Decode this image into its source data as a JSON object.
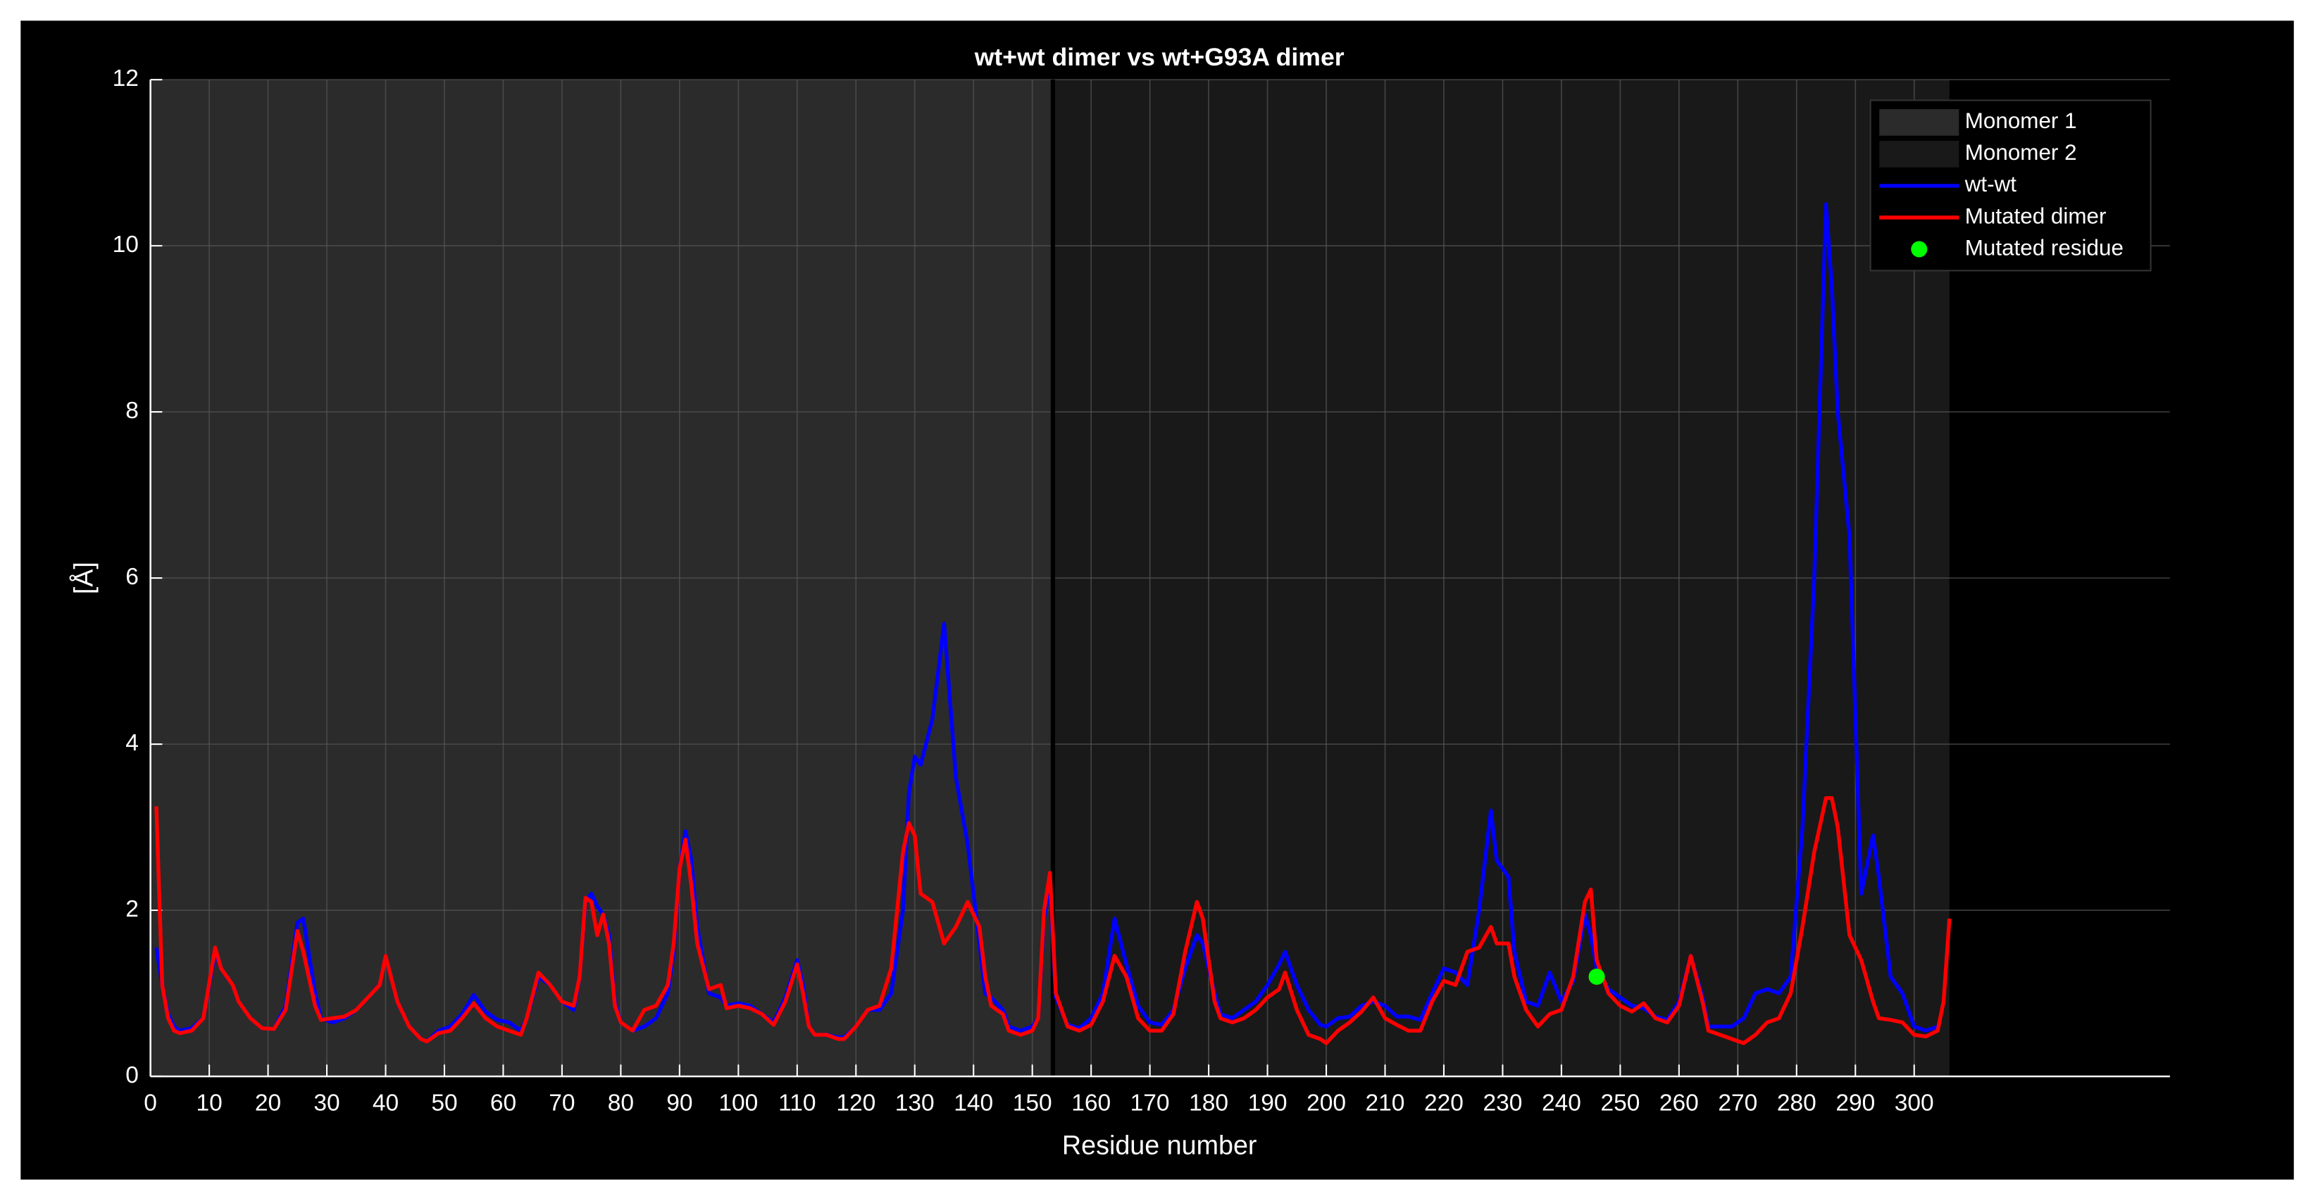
{
  "chart_data": {
    "type": "line",
    "title": "wt+wt dimer vs wt+G93A dimer",
    "x_label": "Residue number",
    "y_label": "[Å]",
    "xlim": [
      0,
      343.5
    ],
    "ylim": [
      0,
      12
    ],
    "xticks": [
      0,
      10,
      20,
      30,
      40,
      50,
      60,
      70,
      80,
      90,
      100,
      110,
      120,
      130,
      140,
      150,
      160,
      170,
      180,
      190,
      200,
      210,
      220,
      230,
      240,
      250,
      260,
      270,
      280,
      290,
      300
    ],
    "yticks": [
      0,
      2,
      4,
      6,
      8,
      10,
      12
    ],
    "grid": true,
    "legend": "upper right",
    "regions": [
      {
        "name": "Monomer 1",
        "start": 0,
        "end": 153.5,
        "color": "#2b2b2b"
      },
      {
        "name": "Monomer 2",
        "start": 153.5,
        "end": 306,
        "color": "#191919"
      }
    ],
    "divider": 153.5,
    "x": [
      1,
      2,
      3,
      4,
      5,
      7,
      9,
      11,
      12,
      14,
      15,
      17,
      19,
      21,
      23,
      25,
      26,
      28,
      29,
      31,
      33,
      35,
      37,
      39,
      40,
      42,
      44,
      46,
      47,
      49,
      51,
      53,
      55,
      57,
      59,
      61,
      63,
      64,
      66,
      68,
      70,
      72,
      73,
      74,
      75,
      76,
      77,
      78,
      79,
      80,
      82,
      84,
      86,
      88,
      89,
      90,
      91,
      92,
      93,
      95,
      97,
      98,
      100,
      102,
      104,
      106,
      108,
      110,
      111,
      112,
      113,
      115,
      117,
      118,
      120,
      122,
      124,
      126,
      128,
      129,
      130,
      131,
      133,
      135,
      137,
      139,
      141,
      142,
      143,
      145,
      146,
      148,
      150,
      151,
      152,
      153,
      154,
      156,
      158,
      160,
      162,
      164,
      166,
      168,
      170,
      172,
      174,
      176,
      178,
      179,
      181,
      182,
      184,
      186,
      188,
      190,
      192,
      193,
      195,
      197,
      199,
      200,
      202,
      204,
      206,
      208,
      210,
      212,
      214,
      216,
      218,
      220,
      222,
      224,
      226,
      228,
      229,
      231,
      232,
      234,
      236,
      238,
      240,
      242,
      244,
      245,
      246,
      248,
      250,
      252,
      254,
      256,
      258,
      260,
      262,
      264,
      265,
      267,
      269,
      271,
      273,
      275,
      277,
      279,
      281,
      283,
      285,
      286,
      287,
      289,
      291,
      293,
      294,
      296,
      298,
      300,
      302,
      304,
      305,
      306
    ],
    "series": [
      {
        "name": "wt-wt",
        "color": "#0000ff",
        "values": [
          1.55,
          1.1,
          0.75,
          0.6,
          0.55,
          0.58,
          0.7,
          1.5,
          1.3,
          1.1,
          0.9,
          0.7,
          0.58,
          0.57,
          0.85,
          1.85,
          1.9,
          1.0,
          0.7,
          0.65,
          0.7,
          0.8,
          0.95,
          1.1,
          1.45,
          0.9,
          0.6,
          0.45,
          0.42,
          0.55,
          0.6,
          0.75,
          0.98,
          0.78,
          0.68,
          0.65,
          0.55,
          0.7,
          1.2,
          1.1,
          0.9,
          0.8,
          1.2,
          2.1,
          2.2,
          2.05,
          1.95,
          1.7,
          0.9,
          0.65,
          0.55,
          0.6,
          0.7,
          1.0,
          1.5,
          2.5,
          2.95,
          2.6,
          1.8,
          1.0,
          0.95,
          0.85,
          0.88,
          0.85,
          0.75,
          0.65,
          0.95,
          1.4,
          1.1,
          0.6,
          0.5,
          0.5,
          0.47,
          0.47,
          0.6,
          0.8,
          0.8,
          1.0,
          2.0,
          3.4,
          3.85,
          3.75,
          4.3,
          5.45,
          3.6,
          2.8,
          1.6,
          1.0,
          0.95,
          0.8,
          0.6,
          0.55,
          0.6,
          0.7,
          1.9,
          2.3,
          0.95,
          0.62,
          0.58,
          0.7,
          1.0,
          1.9,
          1.35,
          0.85,
          0.65,
          0.62,
          0.8,
          1.3,
          1.7,
          1.6,
          1.0,
          0.75,
          0.7,
          0.8,
          0.9,
          1.1,
          1.35,
          1.5,
          1.1,
          0.8,
          0.62,
          0.6,
          0.7,
          0.72,
          0.85,
          0.9,
          0.85,
          0.72,
          0.72,
          0.68,
          1.0,
          1.3,
          1.25,
          1.1,
          2.0,
          3.2,
          2.6,
          2.4,
          1.5,
          0.9,
          0.85,
          1.25,
          0.9,
          1.15,
          1.95,
          1.7,
          1.3,
          1.05,
          0.95,
          0.85,
          0.82,
          0.72,
          0.68,
          0.9,
          1.45,
          0.95,
          0.6,
          0.6,
          0.6,
          0.7,
          1.0,
          1.05,
          1.0,
          1.2,
          3.0,
          6.0,
          10.5,
          9.5,
          8.0,
          6.5,
          2.2,
          2.9,
          2.4,
          1.2,
          1.0,
          0.6,
          0.55,
          0.6,
          null,
          null
        ]
      },
      {
        "name": "Mutated dimer",
        "color": "#ff0000",
        "values": [
          3.25,
          1.1,
          0.7,
          0.55,
          0.52,
          0.55,
          0.7,
          1.55,
          1.3,
          1.1,
          0.9,
          0.7,
          0.58,
          0.57,
          0.8,
          1.75,
          1.5,
          0.85,
          0.68,
          0.7,
          0.72,
          0.8,
          0.95,
          1.1,
          1.45,
          0.9,
          0.6,
          0.45,
          0.42,
          0.52,
          0.55,
          0.7,
          0.88,
          0.7,
          0.6,
          0.55,
          0.5,
          0.7,
          1.25,
          1.1,
          0.9,
          0.85,
          1.2,
          2.15,
          2.1,
          1.7,
          1.95,
          1.6,
          0.85,
          0.65,
          0.55,
          0.8,
          0.85,
          1.1,
          1.6,
          2.5,
          2.85,
          2.3,
          1.6,
          1.05,
          1.1,
          0.82,
          0.85,
          0.82,
          0.75,
          0.62,
          0.9,
          1.35,
          1.0,
          0.6,
          0.5,
          0.5,
          0.45,
          0.45,
          0.6,
          0.8,
          0.85,
          1.3,
          2.7,
          3.05,
          2.9,
          2.2,
          2.1,
          1.6,
          1.8,
          2.1,
          1.8,
          1.2,
          0.85,
          0.75,
          0.55,
          0.5,
          0.55,
          0.7,
          2.0,
          2.45,
          1.0,
          0.6,
          0.55,
          0.62,
          0.9,
          1.45,
          1.2,
          0.7,
          0.55,
          0.55,
          0.75,
          1.5,
          2.1,
          1.9,
          0.9,
          0.7,
          0.65,
          0.7,
          0.8,
          0.95,
          1.05,
          1.25,
          0.8,
          0.5,
          0.45,
          0.4,
          0.55,
          0.65,
          0.78,
          0.95,
          0.7,
          0.62,
          0.55,
          0.55,
          0.9,
          1.15,
          1.1,
          1.5,
          1.55,
          1.8,
          1.6,
          1.6,
          1.2,
          0.8,
          0.6,
          0.75,
          0.8,
          1.2,
          2.1,
          2.25,
          1.4,
          1.0,
          0.85,
          0.78,
          0.88,
          0.7,
          0.65,
          0.85,
          1.45,
          0.9,
          0.55,
          0.5,
          0.45,
          0.4,
          0.5,
          0.65,
          0.7,
          1.0,
          1.8,
          2.7,
          3.35,
          3.35,
          3.0,
          1.7,
          1.4,
          0.9,
          0.7,
          0.68,
          0.65,
          0.5,
          0.48,
          0.55,
          0.9,
          1.9
        ]
      }
    ],
    "marker": {
      "name": "Mutated residue",
      "x": 246,
      "y": 1.2,
      "color": "#00ff00"
    }
  }
}
